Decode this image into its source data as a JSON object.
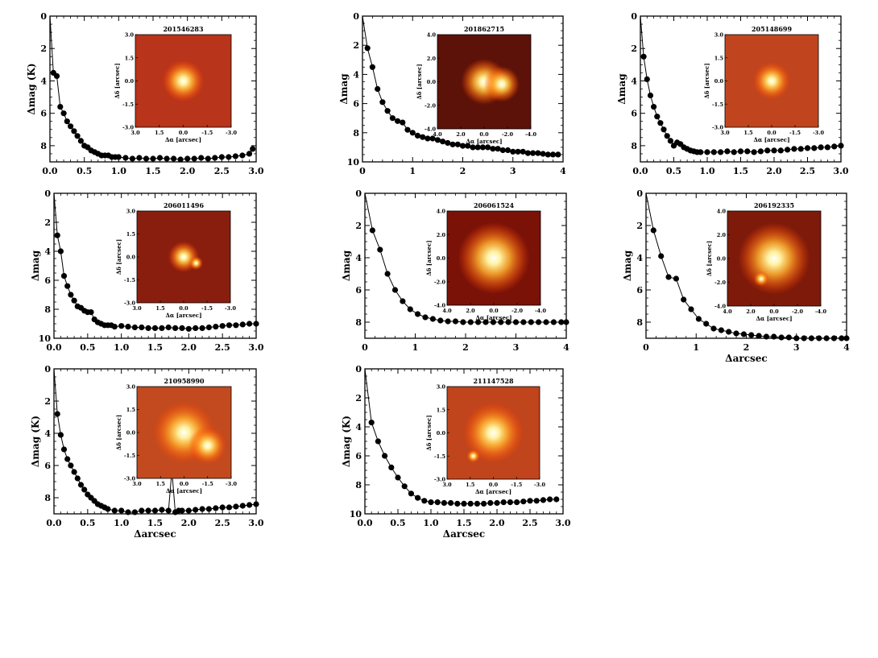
{
  "figure": {
    "xlabel": "Δarcsec"
  },
  "chart_data": [
    {
      "type": "line",
      "title": "201546283",
      "xlabel": "",
      "ylabel": "Δmag (K)",
      "xlim": [
        0,
        3
      ],
      "ylim": [
        0,
        9
      ],
      "y_inverted": true,
      "xticks": [
        "0.0",
        "0.5",
        "1.0",
        "1.5",
        "2.0",
        "2.5",
        "3.0"
      ],
      "yticks": [
        "0",
        "2",
        "4",
        "6",
        "8"
      ],
      "x": [
        0,
        0.05,
        0.1,
        0.15,
        0.2,
        0.25,
        0.3,
        0.35,
        0.4,
        0.45,
        0.5,
        0.55,
        0.6,
        0.65,
        0.7,
        0.75,
        0.8,
        0.85,
        0.9,
        0.95,
        1.0,
        1.1,
        1.2,
        1.3,
        1.4,
        1.5,
        1.6,
        1.7,
        1.8,
        1.9,
        2.0,
        2.1,
        2.2,
        2.3,
        2.4,
        2.5,
        2.6,
        2.7,
        2.8,
        2.9,
        2.95
      ],
      "y": [
        0,
        3.5,
        3.7,
        5.6,
        6.0,
        6.5,
        6.8,
        7.1,
        7.4,
        7.7,
        8.0,
        8.1,
        8.3,
        8.4,
        8.5,
        8.6,
        8.6,
        8.6,
        8.7,
        8.7,
        8.7,
        8.75,
        8.8,
        8.75,
        8.8,
        8.8,
        8.75,
        8.8,
        8.8,
        8.85,
        8.8,
        8.8,
        8.75,
        8.8,
        8.75,
        8.7,
        8.7,
        8.65,
        8.6,
        8.5,
        8.2
      ],
      "inset": {
        "title": "201546283",
        "range": 3.0,
        "xticks": [
          "3.0",
          "1.5",
          "0.0",
          "-1.5",
          "-3.0"
        ],
        "yticks": [
          "3.0",
          "1.5",
          "0.0",
          "-1.5",
          "-3.0"
        ],
        "xlabel": "Δα [arcsec]",
        "ylabel": "Δδ [arcsec]",
        "background": "#b8341a",
        "stars": [
          {
            "x": 0,
            "y": 0,
            "r": 0.6
          }
        ]
      }
    },
    {
      "type": "line",
      "title": "201862715",
      "xlabel": "",
      "ylabel": "Δmag",
      "xlim": [
        0,
        4
      ],
      "ylim": [
        0,
        10
      ],
      "y_inverted": true,
      "xticks": [
        "0",
        "1",
        "2",
        "3",
        "4"
      ],
      "yticks": [
        "0",
        "2",
        "4",
        "6",
        "8",
        "10"
      ],
      "x": [
        0,
        0.1,
        0.2,
        0.3,
        0.4,
        0.5,
        0.6,
        0.7,
        0.8,
        0.9,
        1.0,
        1.1,
        1.2,
        1.3,
        1.4,
        1.5,
        1.6,
        1.7,
        1.8,
        1.9,
        2.0,
        2.1,
        2.2,
        2.3,
        2.4,
        2.5,
        2.6,
        2.7,
        2.8,
        2.9,
        3.0,
        3.1,
        3.2,
        3.3,
        3.4,
        3.5,
        3.6,
        3.7,
        3.8,
        3.9
      ],
      "y": [
        0,
        2.2,
        3.5,
        5.0,
        5.9,
        6.5,
        7.0,
        7.2,
        7.3,
        7.8,
        8.0,
        8.2,
        8.3,
        8.4,
        8.4,
        8.5,
        8.6,
        8.7,
        8.8,
        8.8,
        8.9,
        8.9,
        9.0,
        9.0,
        9.0,
        9.0,
        9.1,
        9.1,
        9.2,
        9.2,
        9.3,
        9.3,
        9.3,
        9.4,
        9.4,
        9.4,
        9.45,
        9.5,
        9.5,
        9.5
      ],
      "inset": {
        "title": "201862715",
        "range": 4.0,
        "xticks": [
          "4.0",
          "2.0",
          "0.0",
          "-2.0",
          "-4.0"
        ],
        "yticks": [
          "4.0",
          "2.0",
          "0.0",
          "-2.0",
          "-4.0"
        ],
        "xlabel": "Δα [arcsec]",
        "ylabel": "Δδ [arcsec]",
        "background": "#5c1208",
        "stars": [
          {
            "x": 0,
            "y": 0,
            "r": 0.9
          },
          {
            "x": -1.5,
            "y": -0.2,
            "r": 0.7
          }
        ]
      }
    },
    {
      "type": "line",
      "title": "205148699",
      "xlabel": "",
      "ylabel": "Δmag",
      "xlim": [
        0,
        3
      ],
      "ylim": [
        0,
        9
      ],
      "y_inverted": true,
      "xticks": [
        "0.0",
        "0.5",
        "1.0",
        "1.5",
        "2.0",
        "2.5",
        "3.0"
      ],
      "yticks": [
        "0",
        "2",
        "4",
        "6",
        "8"
      ],
      "x": [
        0,
        0.05,
        0.1,
        0.15,
        0.2,
        0.25,
        0.3,
        0.35,
        0.4,
        0.45,
        0.5,
        0.55,
        0.6,
        0.65,
        0.7,
        0.75,
        0.8,
        0.85,
        0.9,
        1.0,
        1.1,
        1.2,
        1.3,
        1.4,
        1.5,
        1.6,
        1.7,
        1.8,
        1.9,
        2.0,
        2.1,
        2.2,
        2.3,
        2.4,
        2.5,
        2.6,
        2.7,
        2.8,
        2.9,
        3.0
      ],
      "y": [
        0,
        2.5,
        3.9,
        4.9,
        5.6,
        6.2,
        6.6,
        7.0,
        7.4,
        7.7,
        8.0,
        7.8,
        7.9,
        8.1,
        8.2,
        8.3,
        8.35,
        8.4,
        8.4,
        8.4,
        8.4,
        8.4,
        8.35,
        8.4,
        8.35,
        8.35,
        8.4,
        8.35,
        8.3,
        8.3,
        8.3,
        8.25,
        8.2,
        8.2,
        8.15,
        8.15,
        8.1,
        8.1,
        8.05,
        8.0
      ],
      "inset": {
        "title": "205148699",
        "range": 3.0,
        "xticks": [
          "3.0",
          "1.5",
          "0.0",
          "-1.5",
          "-3.0"
        ],
        "yticks": [
          "3.0",
          "1.5",
          "0.0",
          "-1.5",
          "-3.0"
        ],
        "xlabel": "Δα [arcsec]",
        "ylabel": "Δδ [arcsec]",
        "background": "#c0451e",
        "stars": [
          {
            "x": 0,
            "y": 0,
            "r": 0.55
          }
        ]
      }
    },
    {
      "type": "line",
      "title": "206011496",
      "xlabel": "",
      "ylabel": "Δmag",
      "xlim": [
        0,
        3
      ],
      "ylim": [
        0,
        10
      ],
      "y_inverted": true,
      "xticks": [
        "0.0",
        "0.5",
        "1.0",
        "1.5",
        "2.0",
        "2.5",
        "3.0"
      ],
      "yticks": [
        "0",
        "2",
        "4",
        "6",
        "8",
        "10"
      ],
      "x": [
        0,
        0.05,
        0.1,
        0.15,
        0.2,
        0.25,
        0.3,
        0.35,
        0.4,
        0.45,
        0.5,
        0.55,
        0.6,
        0.65,
        0.7,
        0.75,
        0.8,
        0.85,
        0.9,
        1.0,
        1.1,
        1.2,
        1.3,
        1.4,
        1.5,
        1.6,
        1.7,
        1.8,
        1.9,
        2.0,
        2.1,
        2.2,
        2.3,
        2.4,
        2.5,
        2.6,
        2.7,
        2.8,
        2.9,
        3.0
      ],
      "y": [
        0,
        2.9,
        4.0,
        5.7,
        6.4,
        7.0,
        7.4,
        7.8,
        7.9,
        8.1,
        8.2,
        8.2,
        8.7,
        8.9,
        9.0,
        9.1,
        9.1,
        9.1,
        9.2,
        9.15,
        9.2,
        9.25,
        9.25,
        9.3,
        9.3,
        9.3,
        9.25,
        9.3,
        9.3,
        9.35,
        9.3,
        9.3,
        9.25,
        9.2,
        9.15,
        9.1,
        9.1,
        9.05,
        9.0,
        9.0
      ],
      "inset": {
        "title": "206011496",
        "range": 3.0,
        "xticks": [
          "3.0",
          "1.5",
          "0.0",
          "-1.5",
          "-3.0"
        ],
        "yticks": [
          "3.0",
          "1.5",
          "0.0",
          "-1.5",
          "-3.0"
        ],
        "xlabel": "Δα [arcsec]",
        "ylabel": "Δδ [arcsec]",
        "background": "#8a1e0e",
        "stars": [
          {
            "x": 0,
            "y": 0,
            "r": 0.45
          },
          {
            "x": -0.8,
            "y": -0.4,
            "r": 0.2
          }
        ]
      }
    },
    {
      "type": "line",
      "title": "206061524",
      "xlabel": "",
      "ylabel": "Δmag",
      "xlim": [
        0,
        4
      ],
      "ylim": [
        0,
        9
      ],
      "y_inverted": true,
      "xticks": [
        "0",
        "1",
        "2",
        "3",
        "4"
      ],
      "yticks": [
        "0",
        "2",
        "4",
        "6",
        "8"
      ],
      "x": [
        0,
        0.15,
        0.3,
        0.45,
        0.6,
        0.75,
        0.9,
        1.05,
        1.2,
        1.35,
        1.5,
        1.65,
        1.8,
        1.95,
        2.1,
        2.25,
        2.4,
        2.55,
        2.7,
        2.85,
        3.0,
        3.15,
        3.3,
        3.45,
        3.6,
        3.75,
        3.9,
        4.0
      ],
      "y": [
        0,
        2.3,
        3.5,
        5.0,
        6.0,
        6.7,
        7.2,
        7.5,
        7.7,
        7.8,
        7.9,
        7.95,
        7.95,
        8.0,
        8.0,
        8.0,
        8.0,
        8.0,
        8.0,
        8.0,
        8.0,
        8.0,
        8.0,
        8.0,
        8.0,
        8.0,
        8.0,
        8.0
      ],
      "inset": {
        "title": "206061524",
        "range": 4.0,
        "xticks": [
          "4.0",
          "2.0",
          "0.0",
          "-2.0",
          "-4.0"
        ],
        "yticks": [
          "4.0",
          "2.0",
          "0.0",
          "-2.0",
          "-4.0"
        ],
        "xlabel": "Δα [arcsec]",
        "ylabel": "Δδ [arcsec]",
        "background": "#7a1208",
        "stars": [
          {
            "x": 0,
            "y": 0,
            "r": 1.4
          }
        ]
      }
    },
    {
      "type": "line",
      "title": "206192335",
      "xlabel": "Δarcsec",
      "ylabel": "Δmag",
      "xlim": [
        0,
        4
      ],
      "ylim": [
        0,
        9
      ],
      "y_inverted": true,
      "xticks": [
        "0",
        "1",
        "2",
        "3",
        "4"
      ],
      "yticks": [
        "0",
        "2",
        "4",
        "6",
        "8"
      ],
      "x": [
        0,
        0.15,
        0.3,
        0.45,
        0.6,
        0.75,
        0.9,
        1.05,
        1.2,
        1.35,
        1.5,
        1.65,
        1.8,
        1.95,
        2.1,
        2.25,
        2.4,
        2.55,
        2.7,
        2.85,
        3.0,
        3.15,
        3.3,
        3.45,
        3.6,
        3.75,
        3.9,
        4.0
      ],
      "y": [
        0,
        2.3,
        3.9,
        5.2,
        5.3,
        6.6,
        7.2,
        7.8,
        8.1,
        8.4,
        8.5,
        8.6,
        8.7,
        8.75,
        8.8,
        8.85,
        8.9,
        8.9,
        8.95,
        8.95,
        9.0,
        9.0,
        9.0,
        9.0,
        9.0,
        9.0,
        9.0,
        9.0
      ],
      "inset": {
        "title": "206192335",
        "range": 4.0,
        "xticks": [
          "4.0",
          "2.0",
          "0.0",
          "-2.0",
          "-4.0"
        ],
        "yticks": [
          "4.0",
          "2.0",
          "0.0",
          "-2.0",
          "-4.0"
        ],
        "xlabel": "Δα [arcsec]",
        "ylabel": "Δδ [arcsec]",
        "background": "#7e1a0a",
        "stars": [
          {
            "x": 0,
            "y": 0,
            "r": 1.4
          },
          {
            "x": 1.1,
            "y": -1.7,
            "r": 0.3
          }
        ]
      }
    },
    {
      "type": "line",
      "title": "210958990",
      "xlabel": "Δarcsec",
      "ylabel": "Δmag (K)",
      "xlim": [
        0,
        3
      ],
      "ylim": [
        0,
        9
      ],
      "y_inverted": true,
      "xticks": [
        "0.0",
        "0.5",
        "1.0",
        "1.5",
        "2.0",
        "2.5",
        "3.0"
      ],
      "yticks": [
        "0",
        "2",
        "4",
        "6",
        "8"
      ],
      "x": [
        0,
        0.05,
        0.1,
        0.15,
        0.2,
        0.25,
        0.3,
        0.35,
        0.4,
        0.45,
        0.5,
        0.55,
        0.6,
        0.65,
        0.7,
        0.75,
        0.8,
        0.9,
        1.0,
        1.1,
        1.2,
        1.3,
        1.4,
        1.5,
        1.6,
        1.7,
        1.75,
        1.8,
        1.85,
        1.9,
        2.0,
        2.1,
        2.2,
        2.3,
        2.4,
        2.5,
        2.6,
        2.7,
        2.8,
        2.9,
        3.0
      ],
      "y": [
        0,
        2.8,
        4.1,
        5.0,
        5.6,
        6.0,
        6.4,
        6.8,
        7.2,
        7.5,
        7.8,
        8.0,
        8.2,
        8.4,
        8.5,
        8.6,
        8.7,
        8.8,
        8.8,
        8.9,
        8.9,
        8.8,
        8.8,
        8.8,
        8.75,
        8.8,
        6.3,
        8.9,
        8.8,
        8.8,
        8.8,
        8.75,
        8.7,
        8.7,
        8.65,
        8.6,
        8.6,
        8.55,
        8.5,
        8.45,
        8.4
      ],
      "inset": {
        "title": "210958990",
        "range": 3.0,
        "xticks": [
          "3.0",
          "1.5",
          "0.0",
          "-1.5",
          "-3.0"
        ],
        "yticks": [
          "3.0",
          "1.5",
          "0.0",
          "-1.5",
          "-3.0"
        ],
        "xlabel": "Δα [arcsec]",
        "ylabel": "Δδ [arcsec]",
        "background": "#c24a1e",
        "stars": [
          {
            "x": 0,
            "y": 0,
            "r": 0.9
          },
          {
            "x": -1.5,
            "y": -0.85,
            "r": 0.55
          }
        ]
      }
    },
    {
      "type": "line",
      "title": "211147528",
      "xlabel": "Δarcsec",
      "ylabel": "Δmag (K)",
      "xlim": [
        0,
        3
      ],
      "ylim": [
        0,
        10
      ],
      "y_inverted": true,
      "xticks": [
        "0.0",
        "0.5",
        "1.0",
        "1.5",
        "2.0",
        "2.5",
        "3.0"
      ],
      "yticks": [
        "0",
        "2",
        "4",
        "6",
        "8",
        "10"
      ],
      "x": [
        0,
        0.1,
        0.2,
        0.3,
        0.4,
        0.5,
        0.6,
        0.7,
        0.8,
        0.9,
        1.0,
        1.1,
        1.2,
        1.3,
        1.4,
        1.5,
        1.6,
        1.7,
        1.8,
        1.9,
        2.0,
        2.1,
        2.2,
        2.3,
        2.4,
        2.5,
        2.6,
        2.7,
        2.8,
        2.9
      ],
      "y": [
        0,
        3.7,
        5.0,
        6.0,
        6.8,
        7.5,
        8.1,
        8.6,
        8.9,
        9.1,
        9.2,
        9.2,
        9.25,
        9.25,
        9.3,
        9.3,
        9.3,
        9.3,
        9.3,
        9.25,
        9.25,
        9.2,
        9.2,
        9.2,
        9.15,
        9.1,
        9.1,
        9.05,
        9.0,
        9.0
      ],
      "inset": {
        "title": "211147528",
        "range": 3.0,
        "xticks": [
          "3.0",
          "1.5",
          "0.0",
          "-1.5",
          "-3.0"
        ],
        "yticks": [
          "3.0",
          "1.5",
          "0.0",
          "-1.5",
          "-3.0"
        ],
        "xlabel": "Δα [arcsec]",
        "ylabel": "Δδ [arcsec]",
        "background": "#c0441c",
        "stars": [
          {
            "x": 0,
            "y": 0,
            "r": 0.9
          },
          {
            "x": 1.3,
            "y": -1.5,
            "r": 0.2
          }
        ]
      }
    }
  ]
}
